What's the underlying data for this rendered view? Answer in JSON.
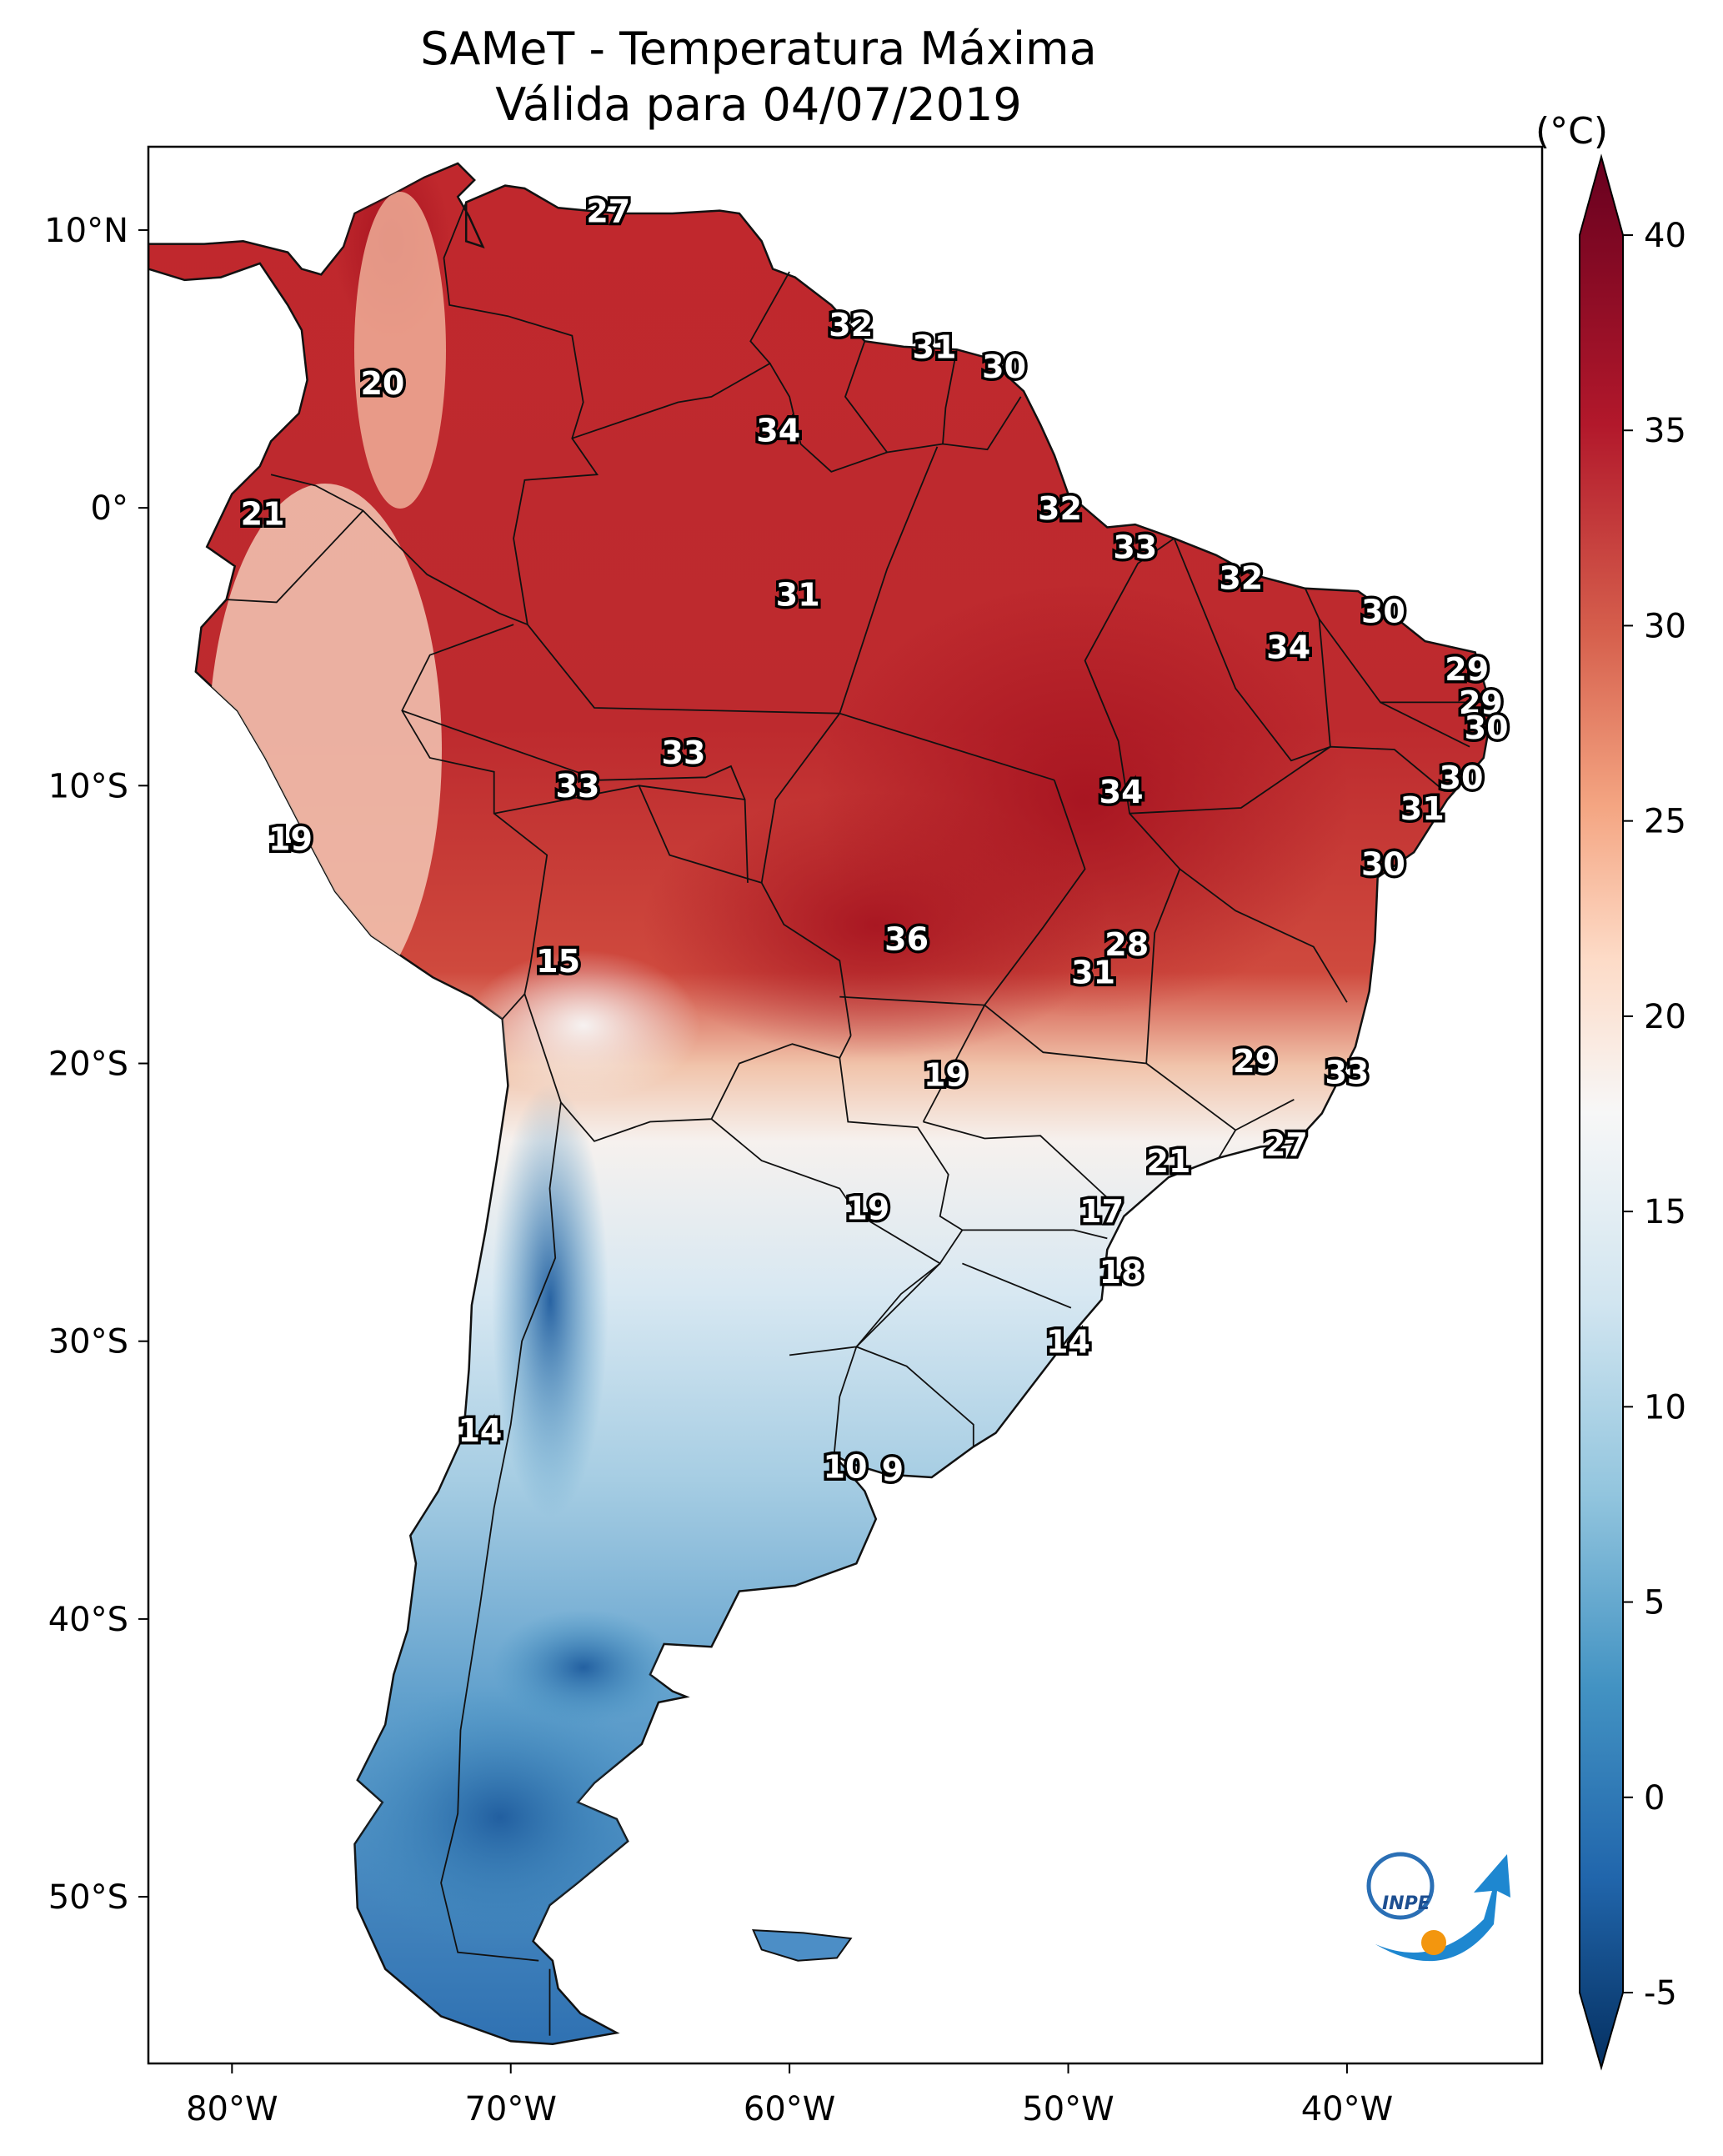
{
  "title": {
    "line1": "SAMeT - Temperatura Máxima",
    "line2": "Válida para 04/07/2019"
  },
  "colorbar": {
    "unit": "(°C)",
    "ticks": [
      "40",
      "35",
      "30",
      "25",
      "20",
      "15",
      "10",
      "5",
      "0",
      "-5"
    ],
    "range": [
      -5,
      40
    ],
    "colors": [
      "#053061",
      "#2166ac",
      "#4393c3",
      "#92c5de",
      "#d1e5f0",
      "#f7f7f7",
      "#fddbc7",
      "#f4a582",
      "#d6604d",
      "#b2182b",
      "#67001f"
    ]
  },
  "axes": {
    "lon_labels": [
      "80°W",
      "70°W",
      "60°W",
      "50°W",
      "40°W"
    ],
    "lat_labels": [
      "10°N",
      "0°",
      "10°S",
      "20°S",
      "30°S",
      "40°S",
      "50°S"
    ]
  },
  "logo": {
    "text": "INPE"
  },
  "labels": [
    {
      "t": "27",
      "lon": -66.5,
      "lat": 10.6
    },
    {
      "t": "20",
      "lon": -74.6,
      "lat": 4.4
    },
    {
      "t": "32",
      "lon": -57.8,
      "lat": 6.5
    },
    {
      "t": "31",
      "lon": -54.8,
      "lat": 5.7
    },
    {
      "t": "30",
      "lon": -52.3,
      "lat": 5.0
    },
    {
      "t": "34",
      "lon": -60.4,
      "lat": 2.7
    },
    {
      "t": "21",
      "lon": -78.9,
      "lat": -0.3
    },
    {
      "t": "32",
      "lon": -50.3,
      "lat": -0.1
    },
    {
      "t": "33",
      "lon": -47.6,
      "lat": -1.5
    },
    {
      "t": "31",
      "lon": -59.7,
      "lat": -3.2
    },
    {
      "t": "32",
      "lon": -43.8,
      "lat": -2.6
    },
    {
      "t": "30",
      "lon": -38.7,
      "lat": -3.8
    },
    {
      "t": "34",
      "lon": -42.1,
      "lat": -5.1
    },
    {
      "t": "29",
      "lon": -35.7,
      "lat": -5.9
    },
    {
      "t": "29",
      "lon": -35.2,
      "lat": -7.1
    },
    {
      "t": "30",
      "lon": -35.0,
      "lat": -8.0
    },
    {
      "t": "33",
      "lon": -63.8,
      "lat": -8.9
    },
    {
      "t": "33",
      "lon": -67.6,
      "lat": -10.1
    },
    {
      "t": "34",
      "lon": -48.1,
      "lat": -10.3
    },
    {
      "t": "30",
      "lon": -35.9,
      "lat": -9.8
    },
    {
      "t": "31",
      "lon": -37.3,
      "lat": -10.9
    },
    {
      "t": "19",
      "lon": -77.9,
      "lat": -12.0
    },
    {
      "t": "30",
      "lon": -38.7,
      "lat": -12.9
    },
    {
      "t": "15",
      "lon": -68.3,
      "lat": -16.4
    },
    {
      "t": "36",
      "lon": -55.8,
      "lat": -15.6
    },
    {
      "t": "28",
      "lon": -47.9,
      "lat": -15.8
    },
    {
      "t": "31",
      "lon": -49.1,
      "lat": -16.8
    },
    {
      "t": "29",
      "lon": -43.3,
      "lat": -20.0
    },
    {
      "t": "19",
      "lon": -54.4,
      "lat": -20.5
    },
    {
      "t": "33",
      "lon": -40.0,
      "lat": -20.4
    },
    {
      "t": "27",
      "lon": -42.2,
      "lat": -23.0
    },
    {
      "t": "21",
      "lon": -46.4,
      "lat": -23.6
    },
    {
      "t": "19",
      "lon": -57.2,
      "lat": -25.3
    },
    {
      "t": "17",
      "lon": -48.8,
      "lat": -25.4
    },
    {
      "t": "18",
      "lon": -48.1,
      "lat": -27.6
    },
    {
      "t": "14",
      "lon": -50.0,
      "lat": -30.1
    },
    {
      "t": "14",
      "lon": -71.1,
      "lat": -33.3
    },
    {
      "t": "10",
      "lon": -58.0,
      "lat": -34.6
    },
    {
      "t": "9",
      "lon": -56.3,
      "lat": -34.7
    }
  ]
}
